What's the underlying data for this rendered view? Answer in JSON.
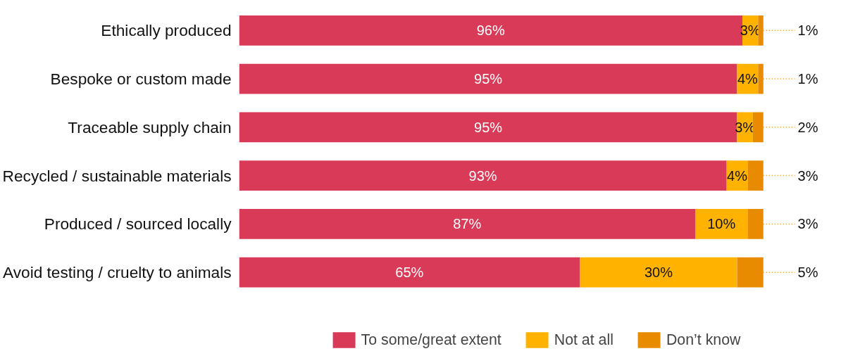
{
  "chart_data": {
    "type": "bar",
    "orientation": "horizontal",
    "stacked": true,
    "legend": "bottom",
    "tick_labels": "y",
    "categories": [
      "Ethically produced",
      "Bespoke or custom made",
      "Traceable supply chain",
      "Recycled / sustainable materials",
      "Produced / sourced locally",
      "Avoid testing / cruelty to animals"
    ],
    "series": [
      {
        "name": "To some/great extent",
        "color": "#d93a57",
        "values": [
          96,
          95,
          95,
          93,
          87,
          65
        ],
        "value_labels": [
          "96%",
          "95%",
          "95%",
          "93%",
          "87%",
          "65%"
        ]
      },
      {
        "name": "Not at all",
        "color": "#ffb300",
        "values": [
          3,
          4,
          3,
          4,
          10,
          30
        ],
        "value_labels": [
          "3%",
          "4%",
          "3%",
          "4%",
          "10%",
          "30%"
        ]
      },
      {
        "name": "Don’t know",
        "color": "#e88b00",
        "values": [
          1,
          1,
          2,
          3,
          3,
          5
        ],
        "value_labels": [
          "1%",
          "1%",
          "2%",
          "3%",
          "3%",
          "5%"
        ]
      }
    ]
  }
}
